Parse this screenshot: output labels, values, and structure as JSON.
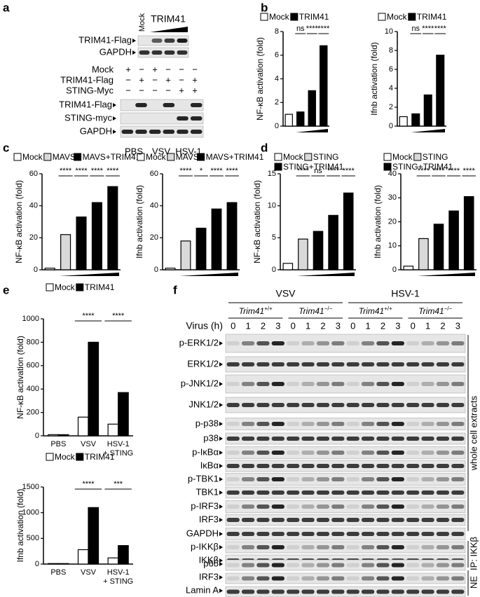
{
  "panel_labels": [
    "a",
    "b",
    "c",
    "d",
    "e",
    "f"
  ],
  "chart_data": [
    {
      "type": "bar",
      "ylabel": "NF-κB activation (fold)",
      "categories": [
        null,
        null,
        null,
        null
      ],
      "series": [
        {
          "name": "Mock",
          "color": "#ffffff",
          "values": [
            1,
            null,
            null,
            null
          ]
        },
        {
          "name": "TRIM41",
          "color": "#000000",
          "values": [
            null,
            1.2,
            3,
            6.8
          ]
        }
      ],
      "ylim": [
        0,
        8
      ],
      "yticks": [
        0,
        2,
        4,
        6,
        8
      ],
      "annotations": [
        "ns",
        "****",
        "****"
      ],
      "ramp": true
    },
    {
      "type": "bar",
      "ylabel": "Ifnb activation (fold)",
      "categories": [
        null,
        null,
        null,
        null
      ],
      "series": [
        {
          "name": "Mock",
          "color": "#ffffff",
          "values": [
            1,
            null,
            null,
            null
          ]
        },
        {
          "name": "TRIM41",
          "color": "#000000",
          "values": [
            null,
            1.3,
            3.3,
            7.5
          ]
        }
      ],
      "ylim": [
        0,
        10
      ],
      "yticks": [
        0,
        2,
        4,
        6,
        8,
        10
      ],
      "annotations": [
        "ns",
        "****",
        "****"
      ],
      "ramp": true
    },
    {
      "type": "bar",
      "ylabel": "NF-κB activation (fold)",
      "categories": [
        null,
        null,
        null,
        null,
        null
      ],
      "series": [
        {
          "name": "Mock",
          "color": "#ffffff",
          "values": [
            1,
            null,
            null,
            null,
            null
          ]
        },
        {
          "name": "MAVS",
          "color": "#d9d9d9",
          "values": [
            null,
            22,
            null,
            null,
            null
          ]
        },
        {
          "name": "MAVS+TRIM41",
          "color": "#000000",
          "values": [
            null,
            null,
            33,
            42,
            52
          ]
        }
      ],
      "ylim": [
        0,
        60
      ],
      "yticks": [
        0,
        20,
        40,
        60
      ],
      "annotations": [
        "****",
        "****",
        "****",
        "****"
      ],
      "ramp": true
    },
    {
      "type": "bar",
      "ylabel": "Ifnb activation (fold)",
      "categories": [
        null,
        null,
        null,
        null,
        null
      ],
      "series": [
        {
          "name": "Mock",
          "color": "#ffffff",
          "values": [
            1,
            null,
            null,
            null,
            null
          ]
        },
        {
          "name": "MAVS",
          "color": "#d9d9d9",
          "values": [
            null,
            18,
            null,
            null,
            null
          ]
        },
        {
          "name": "MAVS+TRIM41",
          "color": "#000000",
          "values": [
            null,
            null,
            26,
            38,
            42
          ]
        }
      ],
      "ylim": [
        0,
        60
      ],
      "yticks": [
        0,
        20,
        40,
        60
      ],
      "annotations": [
        "****",
        "*",
        "****",
        "****"
      ],
      "ramp": true
    },
    {
      "type": "bar",
      "ylabel": "NF-κB activation (fold)",
      "categories": [
        null,
        null,
        null,
        null,
        null
      ],
      "series": [
        {
          "name": "Mock",
          "color": "#ffffff",
          "values": [
            1,
            null,
            null,
            null,
            null
          ]
        },
        {
          "name": "STING",
          "color": "#d9d9d9",
          "values": [
            null,
            4.8,
            null,
            null,
            null
          ]
        },
        {
          "name": "STING+TRIM41",
          "color": "#000000",
          "values": [
            null,
            null,
            6,
            8.5,
            12
          ]
        }
      ],
      "ylim": [
        0,
        15
      ],
      "yticks": [
        0,
        5,
        10,
        15
      ],
      "annotations": [
        "****",
        "ns",
        "****",
        "****"
      ],
      "ramp": true
    },
    {
      "type": "bar",
      "ylabel": "Ifnb activation (fold)",
      "categories": [
        null,
        null,
        null,
        null,
        null
      ],
      "series": [
        {
          "name": "Mock",
          "color": "#ffffff",
          "values": [
            1.5,
            null,
            null,
            null,
            null
          ]
        },
        {
          "name": "STING",
          "color": "#d9d9d9",
          "values": [
            null,
            13,
            null,
            null,
            null
          ]
        },
        {
          "name": "STING+TRIM41",
          "color": "#000000",
          "values": [
            null,
            null,
            19,
            24.5,
            30.5
          ]
        }
      ],
      "ylim": [
        0,
        40
      ],
      "yticks": [
        0,
        10,
        20,
        30,
        40
      ],
      "annotations": [
        "****",
        "****",
        "****",
        "****"
      ],
      "ramp": true
    },
    {
      "type": "bar",
      "ylabel": "NF-κB activation (fold)",
      "categories": [
        "PBS",
        "VSV",
        [
          "HSV-1",
          "+ STING"
        ]
      ],
      "series": [
        {
          "name": "Mock",
          "color": "#ffffff",
          "values": [
            10,
            160,
            100
          ]
        },
        {
          "name": "TRIM41",
          "color": "#000000",
          "values": [
            10,
            800,
            370
          ]
        }
      ],
      "ylim": [
        0,
        1000
      ],
      "yticks": [
        0,
        200,
        400,
        600,
        800,
        1000
      ],
      "annotations": [
        "****",
        "****"
      ],
      "ramp": false
    },
    {
      "type": "bar",
      "ylabel": "Ifnb activation (fold)",
      "categories": [
        "PBS",
        "VSV",
        [
          "HSV-1",
          "+ STING"
        ]
      ],
      "series": [
        {
          "name": "Mock",
          "color": "#ffffff",
          "values": [
            10,
            280,
            120
          ]
        },
        {
          "name": "TRIM41",
          "color": "#000000",
          "values": [
            10,
            1100,
            360
          ]
        }
      ],
      "ylim": [
        0,
        1500
      ],
      "yticks": [
        0,
        500,
        1000,
        1500
      ],
      "annotations": [
        "****",
        "***"
      ],
      "ramp": false
    }
  ],
  "blot_a": {
    "header": [
      "Mock",
      "TRIM41"
    ],
    "top_rows": [
      "TRIM41-Flag",
      "GAPDH"
    ],
    "conditions": [
      {
        "label": "Mock",
        "signs": [
          "+",
          "−",
          "+",
          "−",
          "−",
          "−"
        ]
      },
      {
        "label": "TRIM41-Flag",
        "signs": [
          "−",
          "+",
          "−",
          "+",
          "−",
          "+"
        ]
      },
      {
        "label": "STING-Myc",
        "signs": [
          "−",
          "−",
          "−",
          "−",
          "+",
          "+"
        ]
      }
    ],
    "rows": [
      "TRIM41-Flag",
      "STING-myc",
      "GAPDH"
    ],
    "groups": [
      "PBS",
      "VSV",
      "HSV-1"
    ]
  },
  "blot_f": {
    "viruses": [
      "VSV",
      "HSV-1"
    ],
    "genotypes": [
      {
        "gene": "Trim41",
        "sup": "+/+"
      },
      {
        "gene": "Trim41",
        "sup": "−/−"
      }
    ],
    "time_label": "Virus (h)",
    "times": [
      "0",
      "1",
      "2",
      "3"
    ],
    "rows": [
      "p-ERK1/2",
      "ERK1/2",
      "p-JNK1/2",
      "JNK1/2",
      "p-p38",
      "p38",
      "p-IκBα",
      "IκBα",
      "p-TBK1",
      "TBK1",
      "p-IRF3",
      "IRF3",
      "GAPDH",
      "p-IKKβ",
      "IKKβ",
      "p65",
      "IRF3",
      "Lamin A"
    ],
    "sections": [
      "whole cell extracts",
      "IP: IKKβ",
      "NE"
    ]
  }
}
